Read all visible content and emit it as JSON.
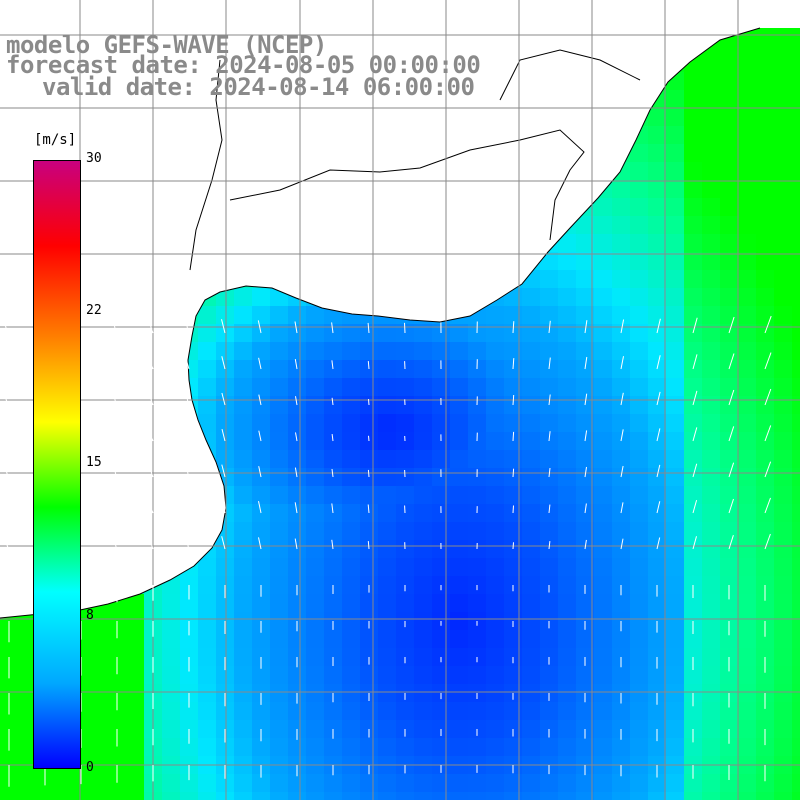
{
  "title": {
    "model": "modelo GEFS-WAVE (NCEP)",
    "forecast": "forecast date: 2024-08-05 00:00:00",
    "valid": "valid date: 2024-08-14 06:00:00"
  },
  "colorbar": {
    "unit": "[m/s]",
    "ticks": [
      {
        "value": 30,
        "label": "30"
      },
      {
        "value": 22,
        "label": "22"
      },
      {
        "value": 15,
        "label": "15"
      },
      {
        "value": 8,
        "label": "8"
      },
      {
        "value": 0,
        "label": "0"
      }
    ],
    "stops": [
      "#0000ff",
      "#00a8ff",
      "#00ffff",
      "#00ff00",
      "#ffff00",
      "#ff7f00",
      "#ff0000",
      "#c8007f"
    ]
  },
  "map": {
    "land_color": "#ffffff",
    "grid_color": "#8a8a8a",
    "coast_color": "#000000",
    "vector_color": "#ffffff"
  }
}
